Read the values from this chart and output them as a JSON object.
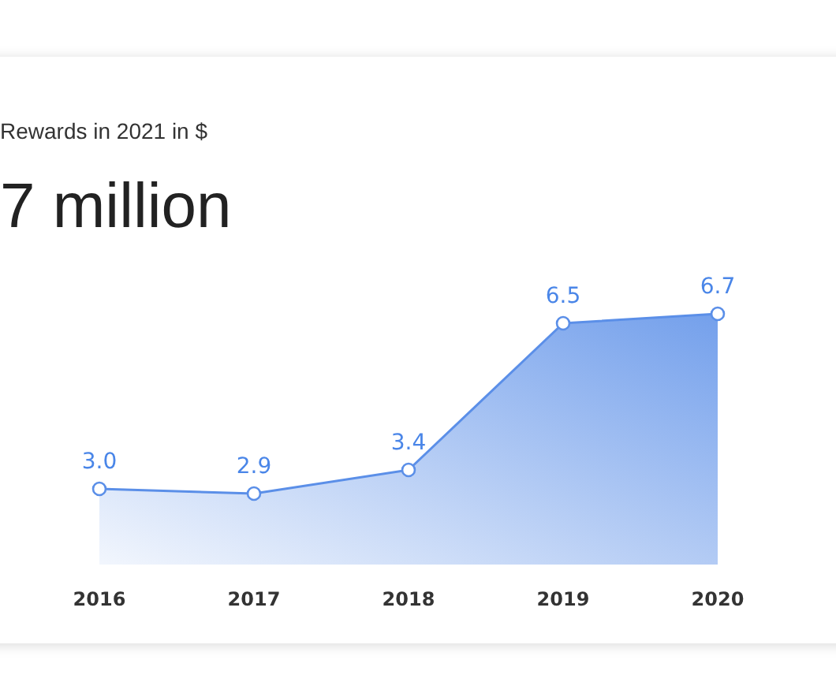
{
  "chart_data": {
    "type": "area",
    "subtitle": "Rewards in 2021 in $",
    "title": "7 million",
    "categories": [
      "2016",
      "2017",
      "2018",
      "2019",
      "2020"
    ],
    "series": [
      {
        "color": "#5b8fe8",
        "values": [
          3.0,
          2.9,
          3.4,
          6.5,
          6.7
        ],
        "value_labels": [
          "3.0",
          "2.9",
          "3.4",
          "6.5",
          "6.7"
        ]
      }
    ],
    "marker": "circle"
  }
}
